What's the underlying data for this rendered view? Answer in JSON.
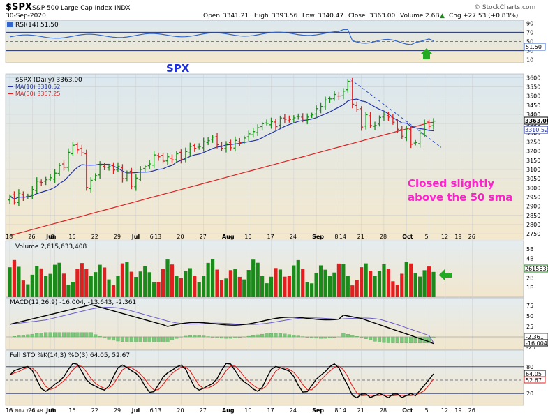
{
  "header": {
    "symbol": "$SPX",
    "name": "S&P 500 Large Cap Index",
    "exchange": "INDX",
    "date": "30-Sep-2020",
    "open_label": "Open",
    "open": "3341.21",
    "high_label": "High",
    "high": "3393.56",
    "low_label": "Low",
    "low": "3340.47",
    "close_label": "Close",
    "close": "3363.00",
    "volume_label": "Volume",
    "volume": "2.6B",
    "chg_label": "Chg",
    "chg": "+27.53 (+0.83%)",
    "chg_arrow": "▲",
    "brand": "© StockCharts.com"
  },
  "colors": {
    "up": "#1a8a1a",
    "down": "#e02020",
    "ma10": "#2233aa",
    "ma50": "#dd2222",
    "rsi": "#3366cc",
    "annotation": "#ff22cc",
    "spx_label": "#1e2fd8",
    "panel_bg_top": "#dbe8f0",
    "panel_bg_bottom": "#f4e8cc",
    "arrow": "#22aa22"
  },
  "rsi": {
    "label": "RSI(14) 51.50",
    "value_tag": "51.50",
    "axis": [
      "90",
      "70",
      "50",
      "30",
      "10"
    ],
    "overlay_text": "SPX"
  },
  "price": {
    "label": "$SPX (Daily) 3363.00",
    "ma10_label": "MA(10) 3310.52",
    "ma50_label": "MA(50) 3357.25",
    "close_tag": "3363.00",
    "ma10_tag": "3310.52",
    "annotation_line1": "Closed slightly",
    "annotation_line2": "above the 50 sma",
    "axis": [
      "3600",
      "3550",
      "3500",
      "3450",
      "3400",
      "3350",
      "3300",
      "3250",
      "3200",
      "3150",
      "3100",
      "3050",
      "3000",
      "2950",
      "2900",
      "2850",
      "2800",
      "2750"
    ]
  },
  "dates": [
    "18",
    "26",
    "Jun",
    "8",
    "15",
    "22",
    "29",
    "Jul",
    "6",
    "13",
    "20",
    "27",
    "Aug",
    "10",
    "17",
    "24",
    "Sep",
    "8",
    "14",
    "21",
    "28",
    "Oct",
    "5",
    "12",
    "19",
    "26"
  ],
  "volume": {
    "label": "Volume 2,615,633,408",
    "axis": [
      "5B",
      "4B",
      "3B",
      "2B",
      "1B"
    ],
    "value_tag": "2615633"
  },
  "macd": {
    "label": "MACD(12,26,9) -16.004, -13.643, -2.361",
    "axis": [
      "75",
      "50",
      "25",
      "0",
      "-25"
    ],
    "tag1": "-2.361",
    "tag2": "-16.004"
  },
  "sto": {
    "label": "Full STO %K(14,3) %D(3) 64.05, 52.67",
    "axis": [
      "80",
      "50",
      "20"
    ],
    "tag1": "64.05",
    "tag2": "52.67",
    "footer": "05 Nov Y -4.48"
  },
  "chart_data": {
    "type": "candlestick",
    "title": "$SPX S&P 500 Large Cap Index INDX",
    "ylabel": "",
    "ylim": [
      2720,
      3620
    ],
    "dates": [
      "May 18",
      "May 19",
      "May 20",
      "May 21",
      "May 22",
      "May 26",
      "May 27",
      "May 28",
      "May 29",
      "Jun 1",
      "Jun 2",
      "Jun 3",
      "Jun 4",
      "Jun 5",
      "Jun 8",
      "Jun 9",
      "Jun 10",
      "Jun 11",
      "Jun 12",
      "Jun 15",
      "Jun 16",
      "Jun 17",
      "Jun 18",
      "Jun 19",
      "Jun 22",
      "Jun 23",
      "Jun 24",
      "Jun 25",
      "Jun 26",
      "Jun 29",
      "Jun 30",
      "Jul 1",
      "Jul 2",
      "Jul 6",
      "Jul 7",
      "Jul 8",
      "Jul 9",
      "Jul 10",
      "Jul 13",
      "Jul 14",
      "Jul 15",
      "Jul 16",
      "Jul 17",
      "Jul 20",
      "Jul 21",
      "Jul 22",
      "Jul 23",
      "Jul 24",
      "Jul 27",
      "Jul 28",
      "Jul 29",
      "Jul 30",
      "Jul 31",
      "Aug 3",
      "Aug 4",
      "Aug 5",
      "Aug 6",
      "Aug 7",
      "Aug 10",
      "Aug 11",
      "Aug 12",
      "Aug 13",
      "Aug 14",
      "Aug 17",
      "Aug 18",
      "Aug 19",
      "Aug 20",
      "Aug 21",
      "Aug 24",
      "Aug 25",
      "Aug 26",
      "Aug 27",
      "Aug 28",
      "Aug 31",
      "Sep 1",
      "Sep 2",
      "Sep 3",
      "Sep 4",
      "Sep 8",
      "Sep 9",
      "Sep 10",
      "Sep 11",
      "Sep 14",
      "Sep 15",
      "Sep 16",
      "Sep 17",
      "Sep 18",
      "Sep 21",
      "Sep 22",
      "Sep 23",
      "Sep 24",
      "Sep 25",
      "Sep 28",
      "Sep 29",
      "Sep 30"
    ],
    "close": [
      2954,
      2922,
      2971,
      2949,
      2955,
      2991,
      3036,
      3029,
      3044,
      3055,
      3080,
      3122,
      3112,
      3193,
      3232,
      3207,
      3190,
      3002,
      3041,
      3066,
      3124,
      3113,
      3115,
      3097,
      3117,
      3050,
      3083,
      3009,
      3053,
      3100,
      3115,
      3130,
      3179,
      3169,
      3145,
      3169,
      3152,
      3185,
      3155,
      3197,
      3226,
      3215,
      3224,
      3251,
      3257,
      3276,
      3235,
      3215,
      3239,
      3218,
      3258,
      3246,
      3271,
      3294,
      3306,
      3327,
      3349,
      3351,
      3360,
      3333,
      3380,
      3373,
      3372,
      3381,
      3389,
      3374,
      3385,
      3397,
      3431,
      3443,
      3478,
      3484,
      3508,
      3500,
      3526,
      3580,
      3455,
      3426,
      3331,
      3398,
      3339,
      3340,
      3383,
      3401,
      3385,
      3357,
      3319,
      3281,
      3315,
      3237,
      3246,
      3298,
      3351,
      3335,
      3363
    ],
    "ma10_last": 3310.52,
    "ma50_last": 3357.25,
    "volume_last": 2615633408,
    "rsi_last": 51.5,
    "macd": {
      "macd": -16.004,
      "signal": -13.643,
      "histogram": -2.361
    },
    "stochastic": {
      "k": 64.05,
      "d": 52.67
    }
  }
}
